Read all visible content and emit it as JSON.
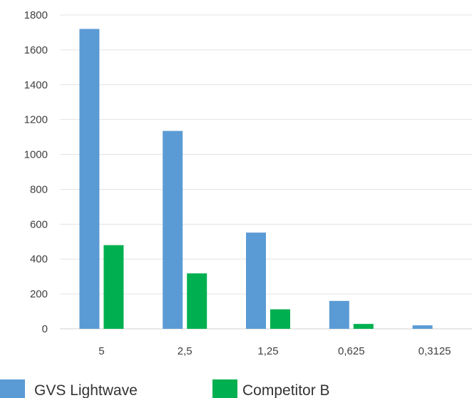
{
  "chart_data": {
    "type": "bar",
    "title": "",
    "xlabel": "",
    "ylabel": "",
    "categories": [
      "5",
      "2,5",
      "1,25",
      "0,625",
      "0,3125"
    ],
    "series": [
      {
        "name": "GVS Lightwave",
        "color": "#5b9bd5",
        "values": [
          1720,
          1135,
          552,
          160,
          20
        ]
      },
      {
        "name": "Competitor B",
        "color": "#00b050",
        "values": [
          480,
          318,
          112,
          28,
          0
        ]
      }
    ],
    "ylim": [
      0,
      1800
    ],
    "yticks": [
      0,
      200,
      400,
      600,
      800,
      1000,
      1200,
      1400,
      1600,
      1800
    ],
    "grid": true,
    "legend_position": "bottom-left"
  }
}
